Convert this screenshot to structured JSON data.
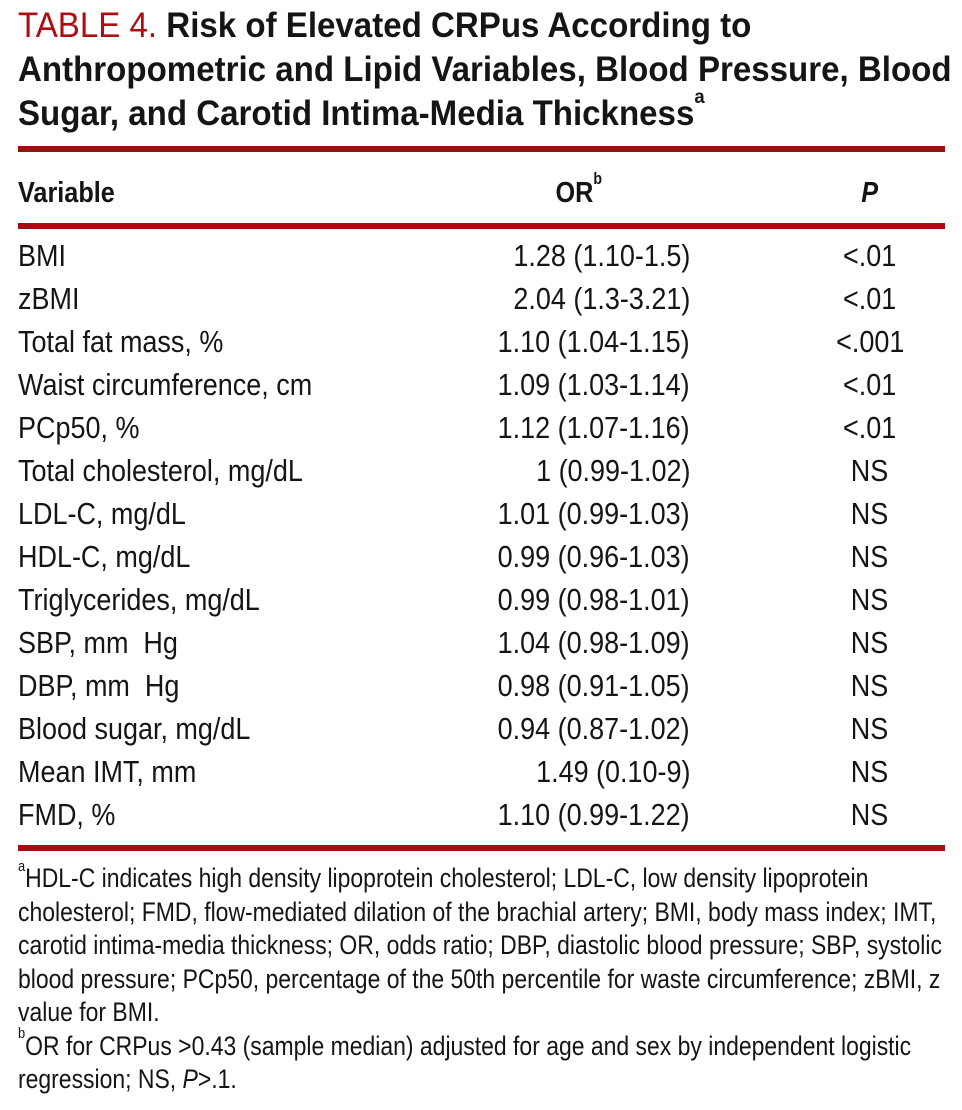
{
  "title": {
    "label": "TABLE 4.",
    "text": "Risk of Elevated CRPus According to Anthropometric and Lipid Variables, Blood Pressure, Blood Sugar, and Carotid Intima-Media Thickness",
    "superscript": "a"
  },
  "table": {
    "columns": {
      "variable": "Variable",
      "or": "OR",
      "or_sup": "b",
      "p": "P"
    },
    "rows": [
      {
        "variable": "BMI",
        "or": "1.28 (1.10-1.5)",
        "p": "<.01"
      },
      {
        "variable": "zBMI",
        "or": "2.04 (1.3-3.21)",
        "p": "<.01"
      },
      {
        "variable": "Total fat mass, %",
        "or": "1.10 (1.04-1.15)",
        "p": "<.001"
      },
      {
        "variable": "Waist circumference, cm",
        "or": "1.09 (1.03-1.14)",
        "p": "<.01"
      },
      {
        "variable": "PCp50, %",
        "or": "1.12 (1.07-1.16)",
        "p": "<.01"
      },
      {
        "variable": "Total cholesterol, mg/dL",
        "or": "1 (0.99-1.02)",
        "p": "NS"
      },
      {
        "variable": "LDL-C, mg/dL",
        "or": "1.01 (0.99-1.03)",
        "p": "NS"
      },
      {
        "variable": "HDL-C, mg/dL",
        "or": "0.99 (0.96-1.03)",
        "p": "NS"
      },
      {
        "variable": "Triglycerides, mg/dL",
        "or": "0.99 (0.98-1.01)",
        "p": "NS"
      },
      {
        "variable": "SBP, mm  Hg",
        "or": "1.04 (0.98-1.09)",
        "p": "NS"
      },
      {
        "variable": "DBP, mm  Hg",
        "or": "0.98 (0.91-1.05)",
        "p": "NS"
      },
      {
        "variable": "Blood sugar, mg/dL",
        "or": "0.94 (0.87-1.02)",
        "p": "NS"
      },
      {
        "variable": "Mean IMT, mm",
        "or": "1.49 (0.10-9)",
        "p": "NS"
      },
      {
        "variable": "FMD, %",
        "or": "1.10 (0.99-1.22)",
        "p": "NS"
      }
    ]
  },
  "footnotes": {
    "a": {
      "marker": "a",
      "text": "HDL-C indicates high density lipoprotein cholesterol; LDL-C, low density lipoprotein cholesterol; FMD, flow-mediated dilation of the brachial artery; BMI, body mass index; IMT, carotid intima-media thickness; OR, odds ratio; DBP, diastolic blood pressure; SBP, systolic blood pressure; PCp50, percentage of the 50th percentile for waste circumference; zBMI, z value for BMI."
    },
    "b": {
      "marker": "b",
      "text1": "OR for CRPus >0.43 (sample median) adjusted for age and sex by independent logistic regression; NS, ",
      "p": "P",
      "text2": ">.1."
    }
  },
  "colors": {
    "accent_red_text": "#b00d12",
    "rule_red": "#a30c10",
    "body_text": "#151515",
    "background": "#ffffff"
  }
}
